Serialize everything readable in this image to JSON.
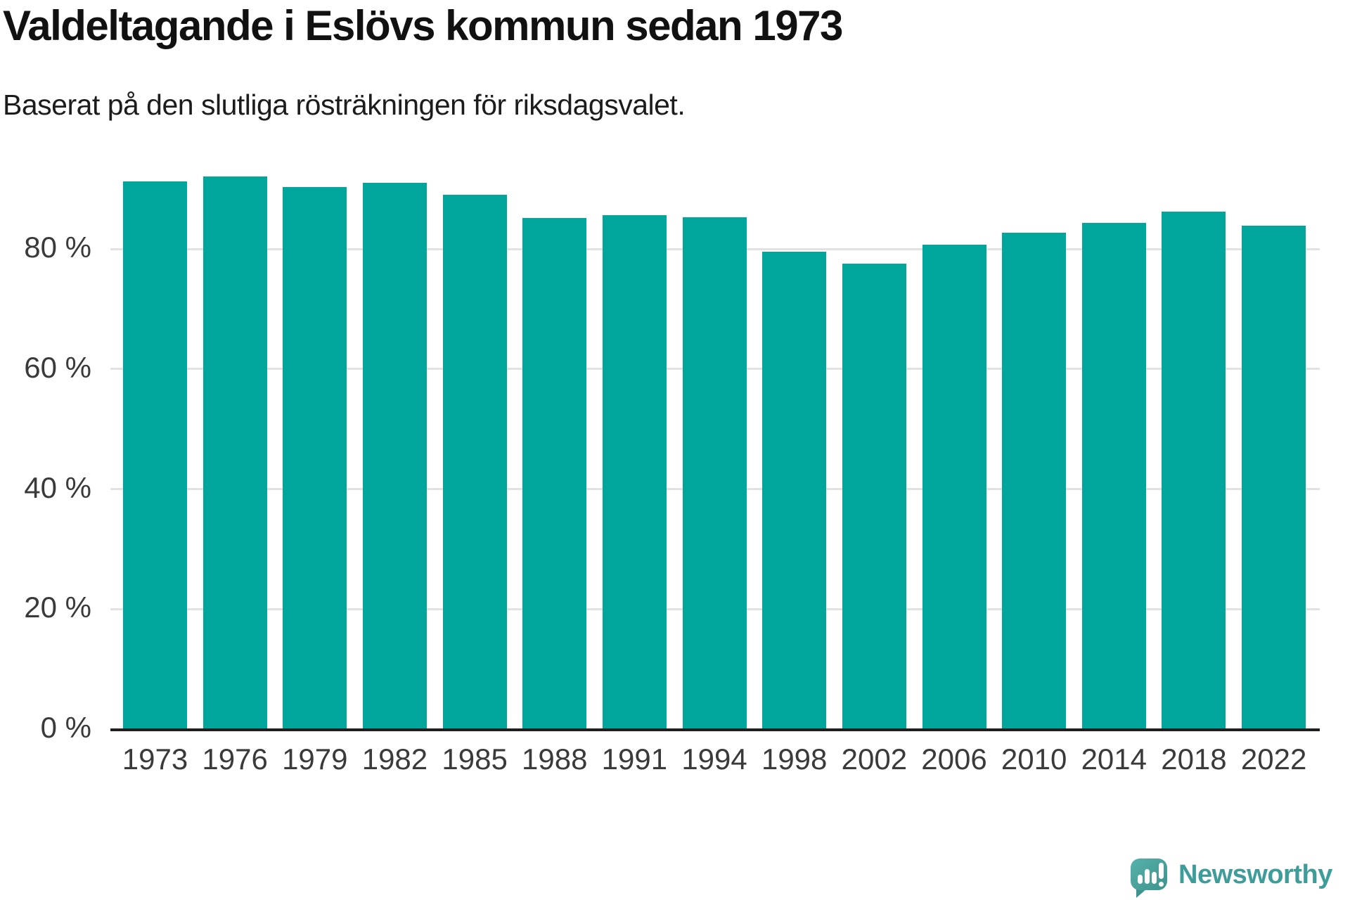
{
  "header": {
    "title": "Valdeltagande i Eslövs kommun sedan 1973",
    "subtitle": "Baserat på den slutliga rösträkningen för riksdagsvalet."
  },
  "branding": {
    "logo_text": "Newsworthy",
    "logo_icon": "speech-bubble-with-bar-chart-and-exclamation"
  },
  "colors": {
    "bar": "#00a69c",
    "gridline": "#e2e2e2",
    "axis_line": "#1f1f1f",
    "tick_label": "#3a3a3a",
    "title": "#111111",
    "subtitle": "#1c1c1c",
    "brand_text": "#3f9d99",
    "brand_icon_light": "#55b2aa",
    "brand_icon_dark": "#3f938d",
    "background": "#ffffff"
  },
  "chart_data": {
    "type": "bar",
    "title": "Valdeltagande i Eslövs kommun sedan 1973",
    "subtitle": "Baserat på den slutliga rösträkningen för riksdagsvalet.",
    "categories": [
      "1973",
      "1976",
      "1979",
      "1982",
      "1985",
      "1988",
      "1991",
      "1994",
      "1998",
      "2002",
      "2006",
      "2010",
      "2014",
      "2018",
      "2022"
    ],
    "values": [
      91.3,
      92.1,
      90.3,
      91.1,
      89.0,
      85.2,
      85.6,
      85.3,
      79.6,
      77.6,
      80.7,
      82.7,
      84.4,
      86.3,
      83.9
    ],
    "unit": "%",
    "xlabel": "",
    "ylabel": "",
    "ytick_values": [
      0,
      20,
      40,
      60,
      80
    ],
    "ytick_labels": [
      "0 %",
      "20 %",
      "40 %",
      "60 %",
      "80 %"
    ],
    "ylim": [
      0,
      96
    ],
    "grid": true,
    "legend_position": "none",
    "bar_color": "#00a69c"
  }
}
